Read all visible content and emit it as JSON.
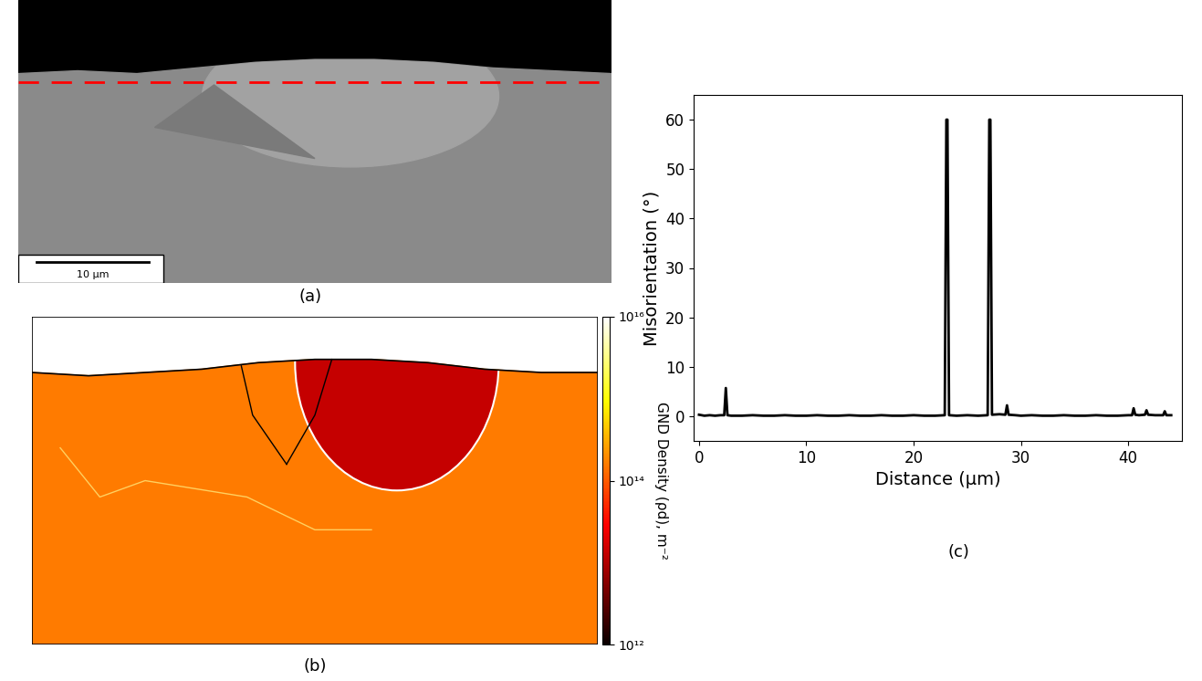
{
  "panel_a": {
    "label": "(a)",
    "scale_bar": "10 µm"
  },
  "panel_b": {
    "label": "(b)",
    "colorbar": {
      "label": "GND Density (ρd), m⁻²",
      "log": true,
      "range": [
        1000000000000.0,
        1e+16
      ],
      "ticks": [
        {
          "value": 1000000000000.0,
          "label": "10¹²"
        },
        {
          "value": 100000000000000.0,
          "label": "10¹⁴"
        },
        {
          "value": 1e+16,
          "label": "10¹⁶"
        }
      ]
    }
  },
  "chart_data": {
    "type": "line",
    "annotations": [
      "(c)"
    ],
    "x_label": "Distance (µm)",
    "y_label": "Misorientation (°)",
    "x": [
      0,
      0.5,
      1.0,
      1.5,
      2.0,
      2.35,
      2.5,
      2.65,
      3.0,
      4,
      5,
      6,
      7,
      8,
      9,
      10,
      11,
      12,
      13,
      14,
      15,
      16,
      17,
      18,
      19,
      20,
      21,
      22,
      22.9,
      23.05,
      23.15,
      23.3,
      24,
      25,
      26,
      26.9,
      27.05,
      27.15,
      27.3,
      28,
      28.55,
      28.7,
      28.85,
      29.5,
      30,
      31,
      32,
      33,
      34,
      35,
      36,
      37,
      38,
      39,
      40,
      40.35,
      40.5,
      40.65,
      41,
      41.55,
      41.7,
      41.85,
      42.5,
      43.25,
      43.4,
      43.55,
      44.0
    ],
    "values": [
      0.3,
      0.1,
      0.2,
      0.1,
      0.2,
      0.2,
      5.7,
      0.2,
      0.1,
      0.1,
      0.2,
      0.1,
      0.1,
      0.2,
      0.1,
      0.1,
      0.2,
      0.1,
      0.1,
      0.2,
      0.1,
      0.1,
      0.2,
      0.1,
      0.1,
      0.2,
      0.1,
      0.1,
      0.2,
      60,
      60,
      0.2,
      0.1,
      0.2,
      0.1,
      0.2,
      60,
      60,
      0.3,
      0.4,
      0.3,
      2.2,
      0.3,
      0.2,
      0.1,
      0.2,
      0.1,
      0.1,
      0.2,
      0.1,
      0.1,
      0.2,
      0.1,
      0.1,
      0.2,
      0.2,
      1.6,
      0.3,
      0.2,
      0.3,
      1.2,
      0.3,
      0.2,
      0.2,
      1.0,
      0.2,
      0.2
    ],
    "color": "#000000",
    "xlim": [
      -0.5,
      45
    ],
    "ylim": [
      -5,
      65
    ],
    "xticks": [
      0,
      10,
      20,
      30,
      40
    ],
    "yticks": [
      0,
      10,
      20,
      30,
      40,
      50,
      60
    ]
  }
}
